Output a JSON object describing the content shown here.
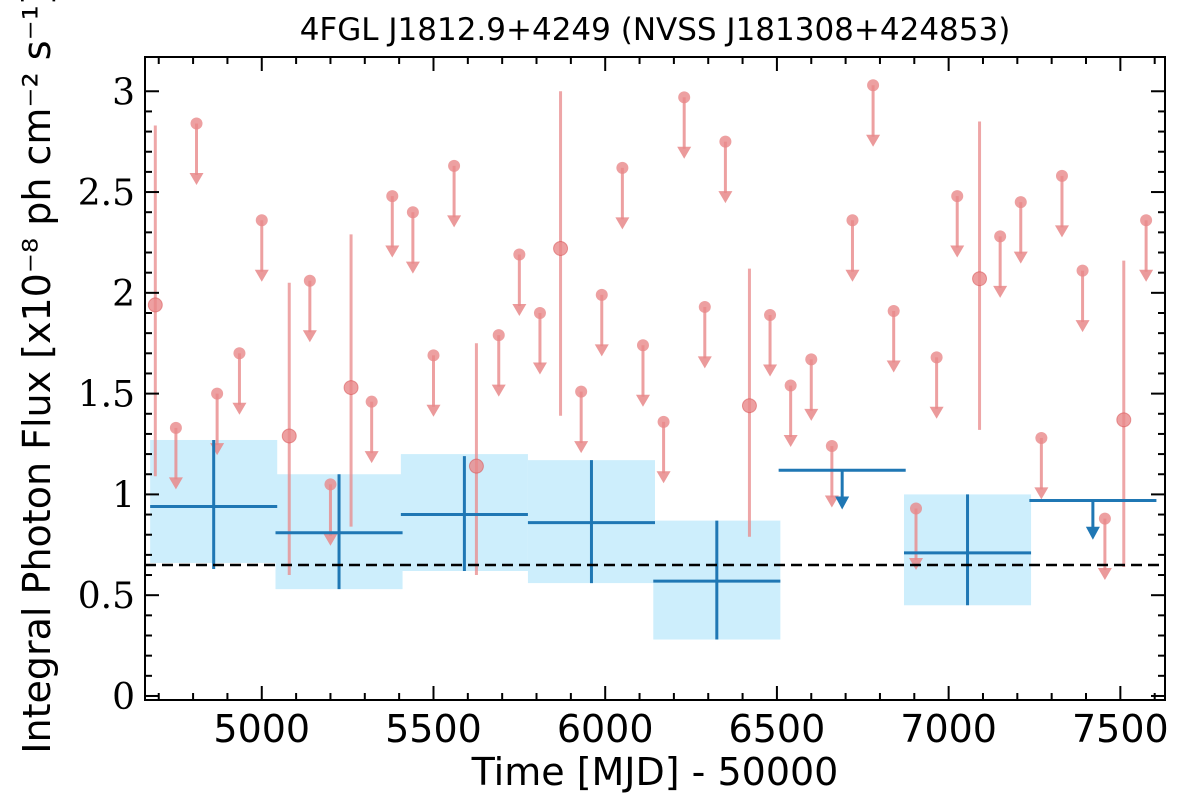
{
  "chart_data": {
    "type": "scatter",
    "title": "4FGL J1812.9+4249 (NVSS J181308+424853)",
    "xlabel": "Time [MJD] - 50000",
    "ylabel": "Integral Photon Flux [x10⁻⁸ ph cm⁻² s⁻¹]",
    "xlim": [
      4660,
      7630
    ],
    "ylim": [
      -0.02,
      3.17
    ],
    "xticks": [
      5000,
      5500,
      6000,
      6500,
      7000,
      7500
    ],
    "xtick_labels": [
      "5000",
      "5500",
      "6000",
      "6500",
      "7000",
      "7500"
    ],
    "yticks": [
      0,
      0.5,
      1,
      1.5,
      2,
      2.5,
      3
    ],
    "ytick_labels": [
      "0",
      "0.5",
      "1",
      "1.5",
      "2",
      "2.5",
      "3"
    ],
    "mean_flux": 0.65,
    "colors": {
      "short_bins": "#e8888a",
      "long_bins": "#1f77b4",
      "long_band": "#cdeefc",
      "mean_line": "#000000"
    },
    "series": [
      {
        "marker": "circle",
        "detections": [
          {
            "x": 4690,
            "y": 1.94,
            "low": 1.09,
            "high": 2.83
          },
          {
            "x": 5080,
            "y": 1.29,
            "low": 0.6,
            "high": 2.05
          },
          {
            "x": 5260,
            "y": 1.53,
            "low": 0.84,
            "high": 2.29
          },
          {
            "x": 5625,
            "y": 1.14,
            "low": 0.6,
            "high": 1.75
          },
          {
            "x": 5870,
            "y": 2.22,
            "low": 1.39,
            "high": 3.0
          },
          {
            "x": 6420,
            "y": 1.44,
            "low": 0.79,
            "high": 2.12
          },
          {
            "x": 7090,
            "y": 2.07,
            "low": 1.32,
            "high": 2.85
          },
          {
            "x": 7510,
            "y": 1.37,
            "low": 0.64,
            "high": 2.16
          }
        ],
        "upper_limits": [
          {
            "x": 4750,
            "y": 1.33
          },
          {
            "x": 4810,
            "y": 2.84
          },
          {
            "x": 4870,
            "y": 1.5
          },
          {
            "x": 4935,
            "y": 1.7
          },
          {
            "x": 5000,
            "y": 2.36
          },
          {
            "x": 5140,
            "y": 2.06
          },
          {
            "x": 5200,
            "y": 1.05
          },
          {
            "x": 5320,
            "y": 1.46
          },
          {
            "x": 5380,
            "y": 2.48
          },
          {
            "x": 5440,
            "y": 2.4
          },
          {
            "x": 5500,
            "y": 1.69
          },
          {
            "x": 5560,
            "y": 2.63
          },
          {
            "x": 5690,
            "y": 1.79
          },
          {
            "x": 5750,
            "y": 2.19
          },
          {
            "x": 5810,
            "y": 1.9
          },
          {
            "x": 5930,
            "y": 1.51
          },
          {
            "x": 5990,
            "y": 1.99
          },
          {
            "x": 6050,
            "y": 2.62
          },
          {
            "x": 6110,
            "y": 1.74
          },
          {
            "x": 6170,
            "y": 1.36
          },
          {
            "x": 6230,
            "y": 2.97
          },
          {
            "x": 6290,
            "y": 1.93
          },
          {
            "x": 6350,
            "y": 2.75
          },
          {
            "x": 6480,
            "y": 1.89
          },
          {
            "x": 6540,
            "y": 1.54
          },
          {
            "x": 6600,
            "y": 1.67
          },
          {
            "x": 6660,
            "y": 1.24
          },
          {
            "x": 6720,
            "y": 2.36
          },
          {
            "x": 6780,
            "y": 3.03
          },
          {
            "x": 6840,
            "y": 1.91
          },
          {
            "x": 6905,
            "y": 0.93
          },
          {
            "x": 6965,
            "y": 1.68
          },
          {
            "x": 7025,
            "y": 2.48
          },
          {
            "x": 7150,
            "y": 2.28
          },
          {
            "x": 7210,
            "y": 2.45
          },
          {
            "x": 7270,
            "y": 1.28
          },
          {
            "x": 7330,
            "y": 2.58
          },
          {
            "x": 7390,
            "y": 2.11
          },
          {
            "x": 7455,
            "y": 0.88
          },
          {
            "x": 7575,
            "y": 2.36
          }
        ]
      },
      {
        "marker": "cross",
        "detections": [
          {
            "x": 4860,
            "x_err": 185,
            "y": 0.94,
            "low": 0.63,
            "high": 1.27,
            "band_low": 0.66,
            "band_high": 1.27
          },
          {
            "x": 5225,
            "x_err": 185,
            "y": 0.81,
            "low": 0.53,
            "high": 1.1,
            "band_low": 0.53,
            "band_high": 1.1
          },
          {
            "x": 5590,
            "x_err": 185,
            "y": 0.9,
            "low": 0.62,
            "high": 1.19,
            "band_low": 0.62,
            "band_high": 1.2
          },
          {
            "x": 5960,
            "x_err": 185,
            "y": 0.86,
            "low": 0.56,
            "high": 1.17,
            "band_low": 0.56,
            "band_high": 1.17
          },
          {
            "x": 6325,
            "x_err": 185,
            "y": 0.57,
            "low": 0.28,
            "high": 0.87,
            "band_low": 0.28,
            "band_high": 0.87
          },
          {
            "x": 7055,
            "x_err": 185,
            "y": 0.71,
            "low": 0.45,
            "high": 1.0,
            "band_low": 0.45,
            "band_high": 1.0
          }
        ],
        "upper_limits": [
          {
            "x": 6690,
            "x_err": 185,
            "y": 1.12
          },
          {
            "x": 7420,
            "x_err": 185,
            "y": 0.97
          }
        ]
      }
    ]
  }
}
